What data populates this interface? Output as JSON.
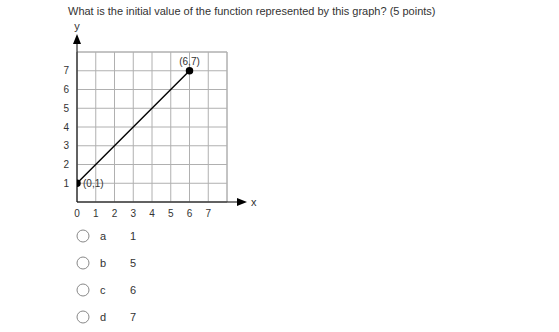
{
  "question": "What is the initial value of the function represented by this graph? (5 points)",
  "chart_data": {
    "type": "line",
    "x": [
      0,
      6
    ],
    "values": [
      1,
      7
    ],
    "color": "#000000",
    "marker": "circle",
    "xlim": [
      0,
      8
    ],
    "ylim": [
      0,
      8
    ],
    "xticks": [
      0,
      1,
      2,
      3,
      4,
      5,
      6,
      7
    ],
    "yticks": [
      1,
      2,
      3,
      4,
      5,
      6,
      7
    ],
    "x_label": "x",
    "y_label": "y",
    "grid": true,
    "annotations": [
      {
        "text": "(0,1)",
        "x": 0,
        "y": 1
      },
      {
        "text": "(6,7)",
        "x": 6,
        "y": 7
      }
    ]
  },
  "options": [
    {
      "letter": "a",
      "text": "1"
    },
    {
      "letter": "b",
      "text": "5"
    },
    {
      "letter": "c",
      "text": "6"
    },
    {
      "letter": "d",
      "text": "7"
    }
  ]
}
